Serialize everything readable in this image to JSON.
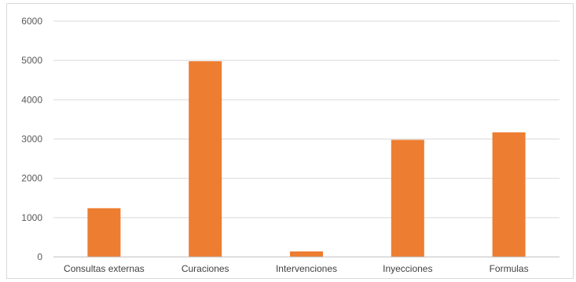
{
  "chart_data": {
    "type": "bar",
    "title": "",
    "xlabel": "",
    "ylabel": "",
    "categories": [
      "Consultas externas",
      "Curaciones",
      "Intervenciones",
      "Inyecciones",
      "Formulas"
    ],
    "values": [
      1240,
      4980,
      140,
      2980,
      3170
    ],
    "ylim": [
      0,
      6000
    ],
    "yticks": [
      0,
      1000,
      2000,
      3000,
      4000,
      5000,
      6000
    ],
    "grid": true,
    "legend": "none",
    "colors": {
      "bar": "#ED7D31",
      "grid": "#d9d9d9",
      "axis": "#bfbfbf"
    }
  }
}
